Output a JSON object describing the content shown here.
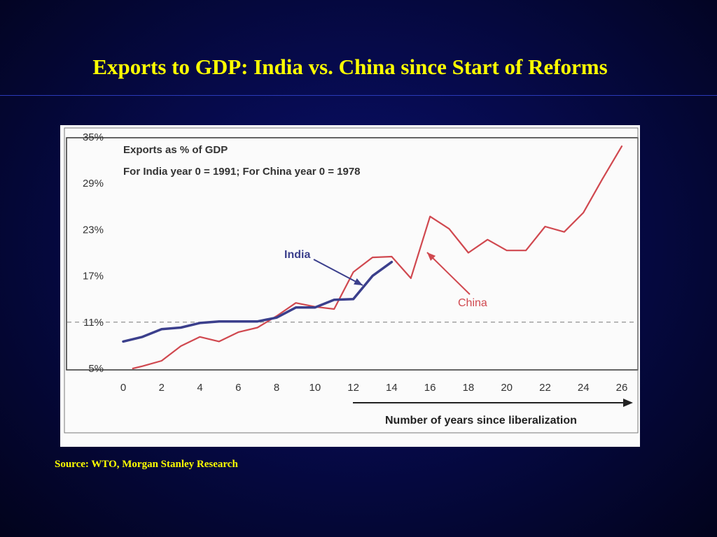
{
  "slide": {
    "title": "Exports to GDP: India vs. China since Start of Reforms",
    "source": "Source: WTO, Morgan Stanley Research"
  },
  "chart_data": {
    "type": "line",
    "notes": [
      "Exports as % of GDP",
      "For India year 0 = 1991; For China year 0 = 1978"
    ],
    "xlabel": "Number of years since liberalization",
    "ylabel": "",
    "xlim": [
      0,
      26
    ],
    "ylim": [
      5,
      35
    ],
    "x_ticks": [
      "0",
      "2",
      "4",
      "6",
      "8",
      "10",
      "12",
      "14",
      "16",
      "18",
      "20",
      "22",
      "24",
      "26"
    ],
    "y_ticks": [
      "5%",
      "11%",
      "17%",
      "23%",
      "29%",
      "35%"
    ],
    "reference_line": {
      "y": 11,
      "style": "dashed"
    },
    "grid": false,
    "series": [
      {
        "name": "India",
        "color": "#3b3f8c",
        "points": [
          [
            0,
            8.5
          ],
          [
            1,
            9.1
          ],
          [
            2,
            10.1
          ],
          [
            3,
            10.3
          ],
          [
            4,
            10.9
          ],
          [
            5,
            11.1
          ],
          [
            6,
            11.1
          ],
          [
            7,
            11.1
          ],
          [
            8,
            11.6
          ],
          [
            9,
            12.9
          ],
          [
            10,
            12.9
          ],
          [
            11,
            13.9
          ],
          [
            12,
            14.0
          ],
          [
            13,
            17.0
          ],
          [
            14,
            18.8
          ]
        ]
      },
      {
        "name": "China",
        "color": "#d0484f",
        "points": [
          [
            0.5,
            5.0
          ],
          [
            1,
            5.3
          ],
          [
            2,
            6.0
          ],
          [
            3,
            7.9
          ],
          [
            4,
            9.1
          ],
          [
            5,
            8.5
          ],
          [
            6,
            9.7
          ],
          [
            7,
            10.3
          ],
          [
            8,
            11.8
          ],
          [
            9,
            13.5
          ],
          [
            10,
            13.0
          ],
          [
            11,
            12.7
          ],
          [
            12,
            17.5
          ],
          [
            13,
            19.4
          ],
          [
            14,
            19.5
          ],
          [
            15,
            16.7
          ],
          [
            16,
            24.7
          ],
          [
            17,
            23.1
          ],
          [
            18,
            20.0
          ],
          [
            19,
            21.7
          ],
          [
            20,
            20.3
          ],
          [
            21,
            20.3
          ],
          [
            22,
            23.4
          ],
          [
            23,
            22.7
          ],
          [
            24,
            25.2
          ],
          [
            25,
            29.6
          ],
          [
            26,
            33.8
          ]
        ]
      }
    ]
  }
}
